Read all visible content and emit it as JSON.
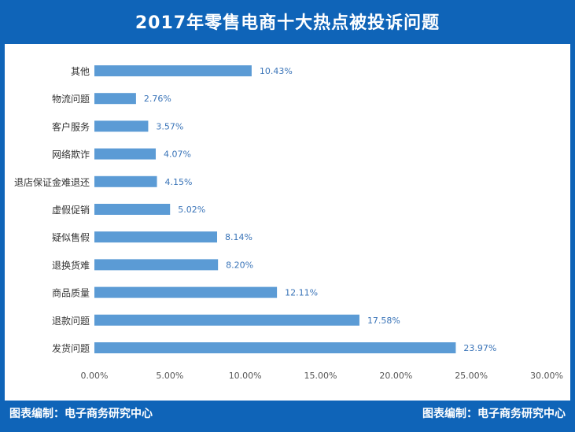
{
  "header": {
    "title": "2017年零售电商十大热点被投诉问题"
  },
  "footer": {
    "left_credit": "图表编制：电子商务研究中心",
    "right_credit": "图表编制：电子商务研究中心"
  },
  "colors": {
    "frame": "#0f64b8",
    "bar": "#5b9bd5",
    "label": "#3a74b8",
    "axis_text": "#555555"
  },
  "chart_data": {
    "type": "bar",
    "orientation": "horizontal",
    "title": "2017年零售电商十大热点被投诉问题",
    "categories": [
      "其他",
      "物流问题",
      "客户服务",
      "网络欺诈",
      "退店保证金难退还",
      "虚假促销",
      "疑似售假",
      "退换货难",
      "商品质量",
      "退款问题",
      "发货问题"
    ],
    "values": [
      10.43,
      2.76,
      3.57,
      4.07,
      4.15,
      5.02,
      8.14,
      8.2,
      12.11,
      17.58,
      23.97
    ],
    "value_labels": [
      "10.43%",
      "2.76%",
      "3.57%",
      "4.07%",
      "4.15%",
      "5.02%",
      "8.14%",
      "8.20%",
      "12.11%",
      "17.58%",
      "23.97%"
    ],
    "xlim": [
      0,
      30
    ],
    "x_ticks": [
      "0.00%",
      "5.00%",
      "10.00%",
      "15.00%",
      "20.00%",
      "25.00%",
      "30.00%"
    ],
    "grid": false,
    "legend": "none"
  }
}
